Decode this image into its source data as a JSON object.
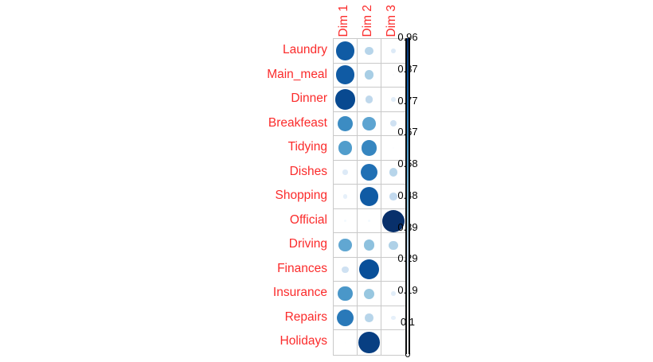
{
  "colors": {
    "background": "#ffffff",
    "label_red": "#fb2b2b",
    "grid_line": "#c9c9c9",
    "legend_border": "#0a0a0a",
    "tick_text": "#000000",
    "palette": [
      "#ffffff",
      "#f7fbff",
      "#deebf7",
      "#c6dbef",
      "#9ecae1",
      "#6baed6",
      "#4292c6",
      "#2171b5",
      "#08519c",
      "#08306b"
    ]
  },
  "legend": {
    "ticks": [
      "0.96",
      "0.87",
      "0.77",
      "0.67",
      "0.58",
      "0.48",
      "0.39",
      "0.29",
      "0.19",
      "0.1",
      "0"
    ]
  },
  "chart_data": {
    "type": "heatmap",
    "subtype": "bubble-matrix (corrplot-style: circle size and blue intensity both encode the value)",
    "title": "",
    "xlabel": "",
    "ylabel": "",
    "x_categories": [
      "Dim 1",
      "Dim 2",
      "Dim 3"
    ],
    "y_categories": [
      "Laundry",
      "Main_meal",
      "Dinner",
      "Breakfeast",
      "Tidying",
      "Dishes",
      "Shopping",
      "Official",
      "Driving",
      "Finances",
      "Insurance",
      "Repairs",
      "Holidays"
    ],
    "values": [
      [
        0.82,
        0.36,
        0.22
      ],
      [
        0.82,
        0.4,
        0.08
      ],
      [
        0.88,
        0.34,
        0.2
      ],
      [
        0.66,
        0.57,
        0.28
      ],
      [
        0.6,
        0.68,
        0.06
      ],
      [
        0.22,
        0.75,
        0.36
      ],
      [
        0.18,
        0.82,
        0.33
      ],
      [
        0.12,
        0.12,
        0.96
      ],
      [
        0.56,
        0.46,
        0.38
      ],
      [
        0.28,
        0.86,
        null
      ],
      [
        0.62,
        0.44,
        0.2
      ],
      [
        0.72,
        0.36,
        0.18
      ],
      [
        0.06,
        0.91,
        null
      ]
    ],
    "value_range": [
      0,
      0.96
    ],
    "legend_ticks": [
      "0.96",
      "0.87",
      "0.77",
      "0.67",
      "0.58",
      "0.48",
      "0.39",
      "0.29",
      "0.19",
      "0.1",
      "0"
    ],
    "colorbar_position": "right",
    "grid": true,
    "legend_position": "right"
  }
}
